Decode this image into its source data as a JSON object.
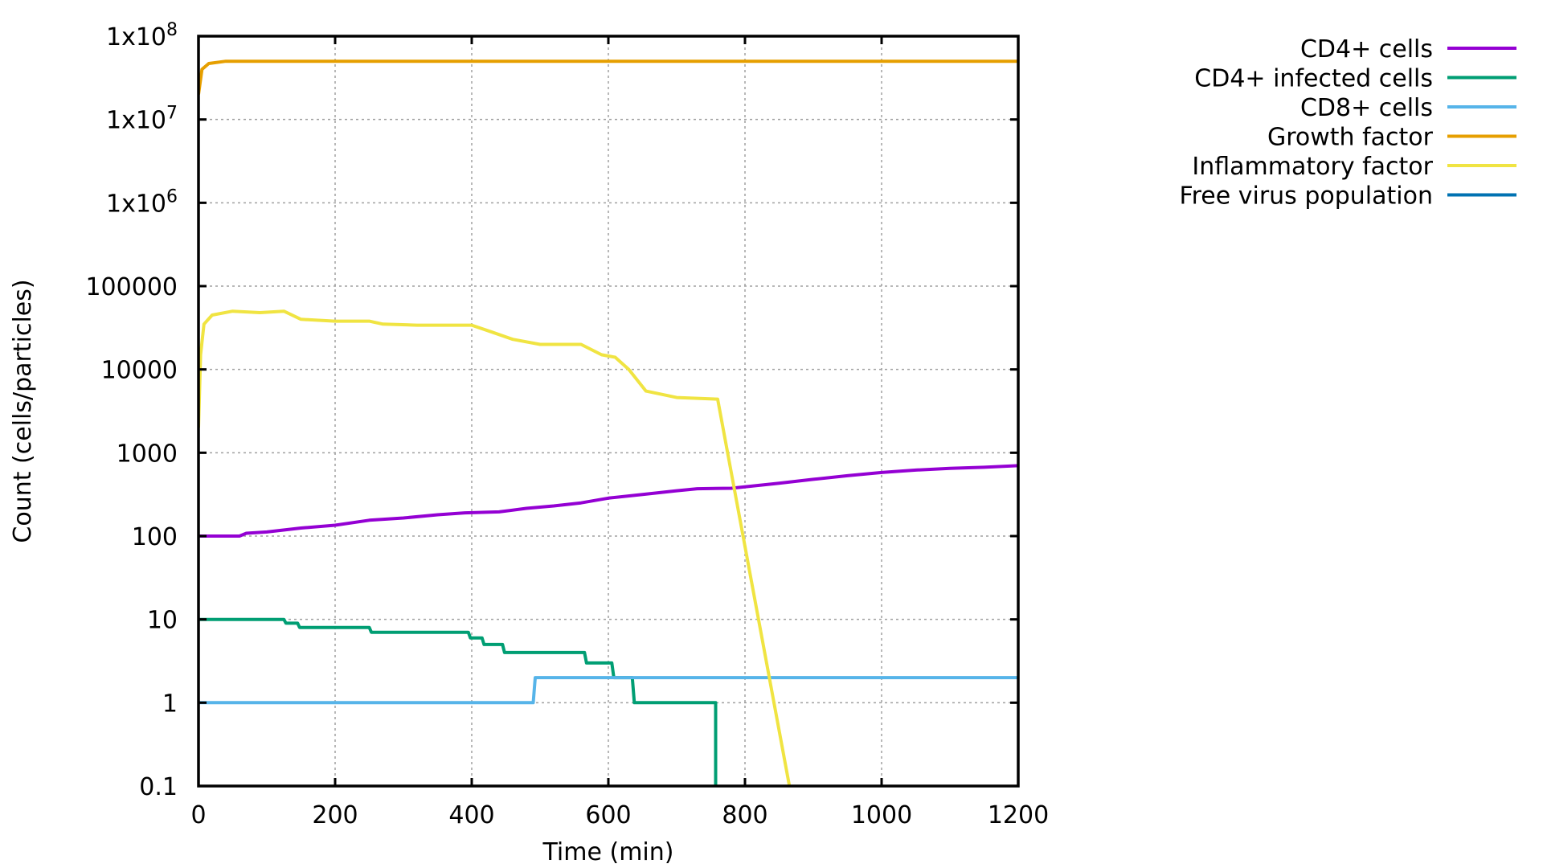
{
  "chart_data": {
    "type": "line",
    "title": "",
    "xlabel": "Time (min)",
    "ylabel": "Count (cells/particles)",
    "xlim": [
      0,
      1200
    ],
    "ylim": [
      0.1,
      100000000
    ],
    "y_scale": "log",
    "grid": true,
    "legend_position": "top-right, outside plot",
    "x_ticks": [
      "0",
      "200",
      "400",
      "600",
      "800",
      "1000",
      "1200"
    ],
    "y_ticks": [
      {
        "value": 0.1,
        "label": "0.1"
      },
      {
        "value": 1,
        "label": "1"
      },
      {
        "value": 10,
        "label": "10"
      },
      {
        "value": 100,
        "label": "100"
      },
      {
        "value": 1000,
        "label": "1000"
      },
      {
        "value": 10000,
        "label": "10000"
      },
      {
        "value": 100000,
        "label": "100000"
      },
      {
        "value": 1000000,
        "label": "1x10",
        "exp": "6"
      },
      {
        "value": 10000000,
        "label": "1x10",
        "exp": "7"
      },
      {
        "value": 100000000,
        "label": "1x10",
        "exp": "8"
      }
    ],
    "series": [
      {
        "name": "CD4+ cells",
        "color": "#9400d3",
        "step": false,
        "points": [
          [
            0,
            100
          ],
          [
            60,
            100
          ],
          [
            70,
            108
          ],
          [
            100,
            112
          ],
          [
            150,
            125
          ],
          [
            200,
            135
          ],
          [
            250,
            155
          ],
          [
            300,
            165
          ],
          [
            350,
            180
          ],
          [
            390,
            190
          ],
          [
            440,
            195
          ],
          [
            480,
            215
          ],
          [
            520,
            230
          ],
          [
            560,
            250
          ],
          [
            600,
            285
          ],
          [
            650,
            315
          ],
          [
            700,
            350
          ],
          [
            730,
            370
          ],
          [
            780,
            375
          ],
          [
            850,
            430
          ],
          [
            900,
            480
          ],
          [
            950,
            530
          ],
          [
            1000,
            580
          ],
          [
            1050,
            620
          ],
          [
            1100,
            650
          ],
          [
            1150,
            670
          ],
          [
            1200,
            700
          ]
        ]
      },
      {
        "name": "CD4+ infected cells",
        "color": "#009e73",
        "step": true,
        "points": [
          [
            0,
            10
          ],
          [
            125,
            10
          ],
          [
            128,
            9
          ],
          [
            145,
            9
          ],
          [
            148,
            8
          ],
          [
            250,
            8
          ],
          [
            253,
            7
          ],
          [
            395,
            7
          ],
          [
            398,
            6
          ],
          [
            415,
            6
          ],
          [
            418,
            5
          ],
          [
            445,
            5
          ],
          [
            448,
            4
          ],
          [
            565,
            4
          ],
          [
            568,
            3
          ],
          [
            605,
            3
          ],
          [
            608,
            2
          ],
          [
            635,
            2
          ],
          [
            638,
            1
          ],
          [
            757,
            1
          ],
          [
            757,
            0.1
          ]
        ]
      },
      {
        "name": "CD8+ cells",
        "color": "#56b4e9",
        "step": true,
        "points": [
          [
            0,
            1
          ],
          [
            490,
            1
          ],
          [
            493,
            2
          ],
          [
            1200,
            2
          ]
        ]
      },
      {
        "name": "Growth factor",
        "color": "#e69f00",
        "step": false,
        "points": [
          [
            0,
            20000000
          ],
          [
            5,
            40000000
          ],
          [
            15,
            47000000
          ],
          [
            40,
            50000000
          ],
          [
            1200,
            50000000
          ]
        ]
      },
      {
        "name": "Inflammatory factor",
        "color": "#f0e442",
        "step": false,
        "points": [
          [
            0,
            2000
          ],
          [
            3,
            15000
          ],
          [
            8,
            35000
          ],
          [
            20,
            45000
          ],
          [
            50,
            50000
          ],
          [
            90,
            48000
          ],
          [
            125,
            50000
          ],
          [
            150,
            40000
          ],
          [
            200,
            38000
          ],
          [
            250,
            38000
          ],
          [
            270,
            35000
          ],
          [
            320,
            34000
          ],
          [
            400,
            34000
          ],
          [
            430,
            28000
          ],
          [
            460,
            23000
          ],
          [
            500,
            20000
          ],
          [
            560,
            20000
          ],
          [
            590,
            15000
          ],
          [
            610,
            14000
          ],
          [
            630,
            10000
          ],
          [
            655,
            5500
          ],
          [
            700,
            4600
          ],
          [
            760,
            4400
          ],
          [
            865,
            0.1
          ]
        ]
      },
      {
        "name": "Free virus population",
        "color": "#0072b2",
        "step": false,
        "points": []
      }
    ]
  }
}
